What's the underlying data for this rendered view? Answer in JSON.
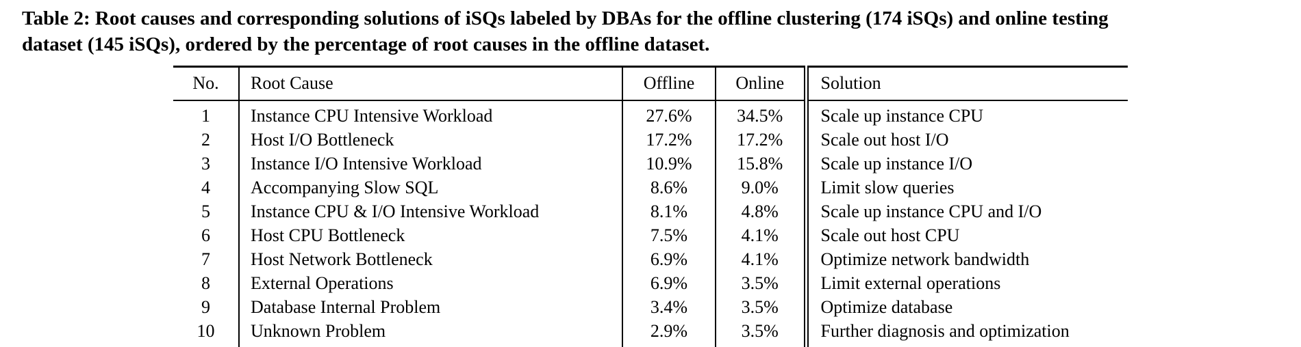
{
  "caption": {
    "lines": [
      "Table 2: Root causes and corresponding solutions of iSQs labeled by DBAs for the offline clustering (174 iSQs) and online testing",
      "dataset (145 iSQs), ordered by the percentage of root causes in the offline dataset."
    ]
  },
  "table": {
    "headers": [
      "No.",
      "Root Cause",
      "Offline",
      "Online",
      "Solution"
    ],
    "rows": [
      {
        "no": "1",
        "root_cause": "Instance CPU Intensive Workload",
        "offline": "27.6%",
        "online": "34.5%",
        "solution": "Scale up instance CPU"
      },
      {
        "no": "2",
        "root_cause": "Host I/O Bottleneck",
        "offline": "17.2%",
        "online": "17.2%",
        "solution": "Scale out host I/O"
      },
      {
        "no": "3",
        "root_cause": "Instance I/O Intensive Workload",
        "offline": "10.9%",
        "online": "15.8%",
        "solution": "Scale up instance I/O"
      },
      {
        "no": "4",
        "root_cause": "Accompanying Slow SQL",
        "offline": "8.6%",
        "online": "9.0%",
        "solution": "Limit slow queries"
      },
      {
        "no": "5",
        "root_cause": "Instance CPU & I/O Intensive Workload",
        "offline": "8.1%",
        "online": "4.8%",
        "solution": "Scale up instance CPU and I/O"
      },
      {
        "no": "6",
        "root_cause": "Host CPU Bottleneck",
        "offline": "7.5%",
        "online": "4.1%",
        "solution": "Scale out host CPU"
      },
      {
        "no": "7",
        "root_cause": "Host Network Bottleneck",
        "offline": "6.9%",
        "online": "4.1%",
        "solution": "Optimize network bandwidth"
      },
      {
        "no": "8",
        "root_cause": "External Operations",
        "offline": "6.9%",
        "online": "3.5%",
        "solution": "Limit external operations"
      },
      {
        "no": "9",
        "root_cause": "Database Internal Problem",
        "offline": "3.4%",
        "online": "3.5%",
        "solution": "Optimize database"
      },
      {
        "no": "10",
        "root_cause": "Unknown Problem",
        "offline": "2.9%",
        "online": "3.5%",
        "solution": "Further diagnosis and optimization"
      }
    ]
  }
}
